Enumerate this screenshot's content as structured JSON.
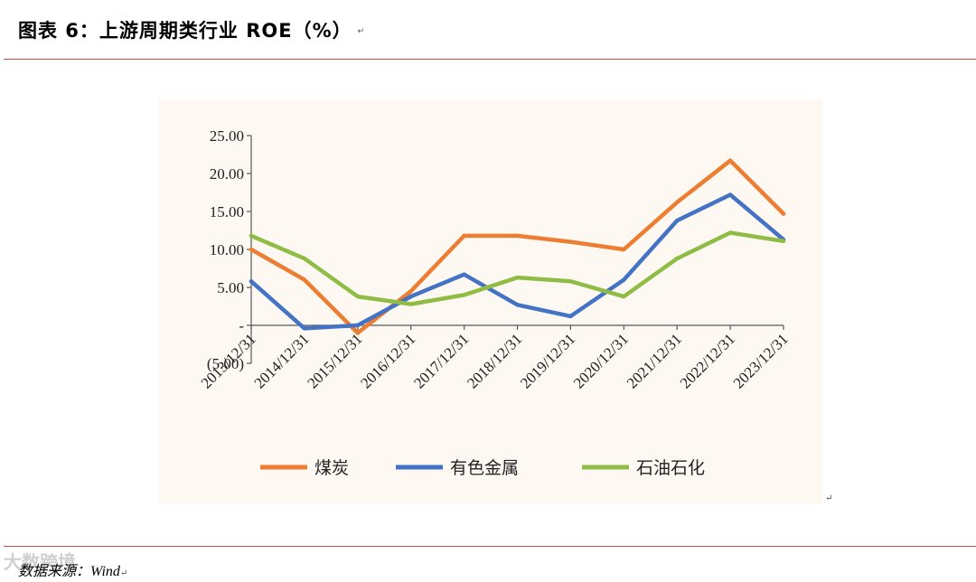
{
  "header": {
    "title": "图表 6：上游周期类行业 ROE（%）",
    "return_mark": "↵"
  },
  "footer": {
    "source_text": "数据来源：Wind",
    "return_mark": "↵",
    "watermark": "大数跨境"
  },
  "colors": {
    "rule": "#c0504d",
    "panel_bg": "#fdf8f2"
  },
  "chart_data": {
    "type": "line",
    "title": "",
    "xlabel": "",
    "ylabel": "",
    "categories": [
      "2013/12/31",
      "2014/12/31",
      "2015/12/31",
      "2016/12/31",
      "2017/12/31",
      "2018/12/31",
      "2019/12/31",
      "2020/12/31",
      "2021/12/31",
      "2022/12/31",
      "2023/12/31"
    ],
    "ylim": [
      -5,
      25
    ],
    "y_ticks": [
      25,
      20,
      15,
      10,
      5,
      0,
      -5
    ],
    "y_tick_labels": [
      "25.00",
      "20.00",
      "15.00",
      "10.00",
      "5.00",
      "-",
      "(5.00)"
    ],
    "legend_position": "bottom",
    "grid": false,
    "series": [
      {
        "name": "煤炭",
        "color": "#ed7d31",
        "values": [
          10.0,
          6.0,
          -1.0,
          4.5,
          11.8,
          11.8,
          11.0,
          10.0,
          16.2,
          21.7,
          14.7
        ]
      },
      {
        "name": "有色金属",
        "color": "#4472c4",
        "values": [
          5.8,
          -0.4,
          0.0,
          3.8,
          6.7,
          2.7,
          1.2,
          6.0,
          13.8,
          17.2,
          11.3
        ]
      },
      {
        "name": "石油石化",
        "color": "#8fbc45",
        "values": [
          11.8,
          8.8,
          3.8,
          2.8,
          4.0,
          6.3,
          5.8,
          3.8,
          8.8,
          12.2,
          11.1
        ]
      }
    ]
  }
}
